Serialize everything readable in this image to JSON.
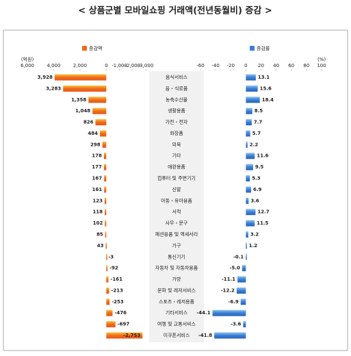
{
  "chart_data": {
    "type": "butterfly",
    "title": "< 상품군별 모바일쇼핑 거래액(전년동월비) 증감 >",
    "categories": [
      "음식서비스",
      "음・식료품",
      "농축수산물",
      "생활용품",
      "가전・전자",
      "화장품",
      "의복",
      "기타",
      "애완용품",
      "컴퓨터 및 주변기기",
      "신발",
      "아동・유아용품",
      "서적",
      "사무・문구",
      "패션용품 및 액세서리",
      "가구",
      "통신기기",
      "자동차 및 자동차용품",
      "가방",
      "문화 및 레저서비스",
      "스포츠・레저용품",
      "기타서비스",
      "여행 및 교통서비스",
      "이쿠폰서비스"
    ],
    "series": [
      {
        "name": "증감액",
        "color": "#ef6c1a",
        "axis": "x",
        "values": [
          3928,
          3283,
          1358,
          1048,
          826,
          484,
          298,
          178,
          177,
          167,
          161,
          123,
          118,
          102,
          85,
          43,
          -3,
          -92,
          -161,
          -213,
          -253,
          -476,
          -697,
          -2753
        ],
        "value_labels": [
          "3,928",
          "3,283",
          "1,358",
          "1,048",
          "826",
          "484",
          "298",
          "178",
          "177",
          "167",
          "161",
          "123",
          "118",
          "102",
          "85",
          "43",
          "-3",
          "-92",
          "-161",
          "-213",
          "-253",
          "-476",
          "-697",
          "-2,753"
        ]
      },
      {
        "name": "증감률",
        "color": "#3a7fd5",
        "axis": "x2",
        "values": [
          13.1,
          15.6,
          18.4,
          8.5,
          7.7,
          5.7,
          2.2,
          11.6,
          9.5,
          5.3,
          6.9,
          3.6,
          12.7,
          11.5,
          3.2,
          1.2,
          -0.1,
          -5.0,
          -11.1,
          -12.2,
          -6.9,
          -44.1,
          -3.6,
          -41.8
        ],
        "value_labels": [
          "13.1",
          "15.6",
          "18.4",
          "8.5",
          "7.7",
          "5.7",
          "2.2",
          "11.6",
          "9.5",
          "5.3",
          "6.9",
          "3.6",
          "12.7",
          "11.5",
          "3.2",
          "1.2",
          "-0.1",
          "-5.0",
          "-11.1",
          "-12.2",
          "-6.9",
          "-44.1",
          "-3.6",
          "-41.8"
        ]
      }
    ],
    "x_unit": "(억원)",
    "x2_unit": "(%)",
    "xlim": [
      6000,
      -3000
    ],
    "xticks": [
      {
        "value": 6000,
        "label": "6,000"
      },
      {
        "value": 4000,
        "label": "4,000"
      },
      {
        "value": 2000,
        "label": "2,000"
      },
      0,
      {
        "value": -1000,
        "label": "-1,000"
      },
      {
        "value": -2000,
        "label": "-2,000"
      },
      {
        "value": -3000,
        "label": "-3,000"
      }
    ],
    "x2lim": [
      -60,
      100
    ],
    "x2ticks": [
      -60,
      -40,
      -20,
      0,
      20,
      40,
      60,
      80,
      100
    ],
    "grid": false
  }
}
